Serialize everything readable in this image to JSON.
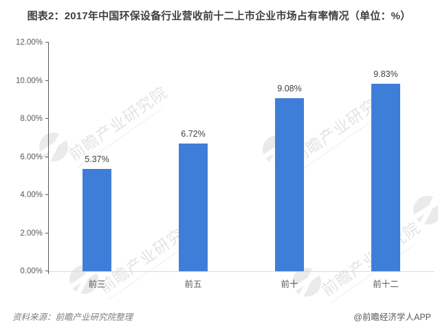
{
  "title": "图表2：2017年中国环保设备行业营收前十二上市企业市场占有率情况（单位：%）",
  "footer": {
    "source": "资料来源：前瞻产业研究院整理",
    "credit": "@前瞻经济学人APP"
  },
  "watermark": {
    "text": "前瞻产业研究院"
  },
  "colors": {
    "bar": "#3E7ED8",
    "axis": "#595959",
    "baseline": "#D9D9D9",
    "title_text": "#404040",
    "value_label_text": "#404040",
    "tick_label_text": "#595959",
    "source_text": "#808080",
    "watermark_gray": "#EAEAEA"
  },
  "chart_data": {
    "type": "bar",
    "title": "图表2：2017年中国环保设备行业营收前十二上市企业市场占有率情况（单位：%）",
    "categories": [
      "前三",
      "前五",
      "前十",
      "前十二"
    ],
    "values": [
      5.37,
      6.72,
      9.08,
      9.83
    ],
    "value_labels": [
      "5.37%",
      "6.72%",
      "9.08%",
      "9.83%"
    ],
    "unit": "%",
    "xlabel": "",
    "ylabel": "",
    "ylim": [
      0,
      12
    ],
    "ytick_labels": [
      "0.00%",
      "2.00%",
      "4.00%",
      "6.00%",
      "8.00%",
      "10.00%",
      "12.00%"
    ],
    "grid": false,
    "legend": false,
    "bar_color": "#3E7ED8"
  }
}
